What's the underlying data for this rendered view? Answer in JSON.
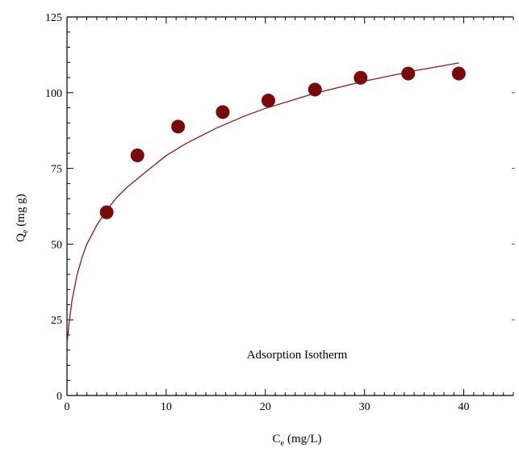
{
  "chart_data": {
    "type": "scatter",
    "title": "",
    "annotation": "Adsorption Isotherm",
    "xlabel": {
      "main": "C",
      "sub": "e",
      "unit": "(mg/L)"
    },
    "ylabel": {
      "main": "Q",
      "sub": "e",
      "unit": "(mg g)"
    },
    "xlim": [
      0,
      45
    ],
    "ylim": [
      0,
      125
    ],
    "xticks": [
      0,
      10,
      20,
      30,
      40
    ],
    "yticks": [
      0,
      25,
      50,
      75,
      100,
      125
    ],
    "grid": false,
    "colors": {
      "marker": "#7a0a0a",
      "curve": "#8b1a1a",
      "axis": "#000000"
    },
    "series": [
      {
        "kind": "points",
        "x": [
          4.0,
          7.1,
          11.2,
          15.7,
          20.3,
          25.0,
          29.6,
          34.4,
          39.5
        ],
        "y": [
          60.5,
          79.3,
          88.8,
          93.6,
          97.4,
          101.0,
          104.9,
          106.3,
          106.3
        ]
      },
      {
        "kind": "fit-curve",
        "x": [
          0,
          0.2,
          0.5,
          1,
          1.5,
          2,
          3,
          4,
          5,
          6,
          8,
          10,
          12,
          15,
          18,
          20,
          25,
          30,
          35,
          39.5
        ],
        "y": [
          17,
          23.5,
          31.3,
          39.6,
          45.4,
          50,
          56.2,
          61.2,
          65.3,
          68.6,
          74.0,
          79.2,
          83.2,
          88.2,
          92.4,
          94.8,
          99.8,
          103.8,
          107.2,
          109.8
        ]
      }
    ]
  }
}
